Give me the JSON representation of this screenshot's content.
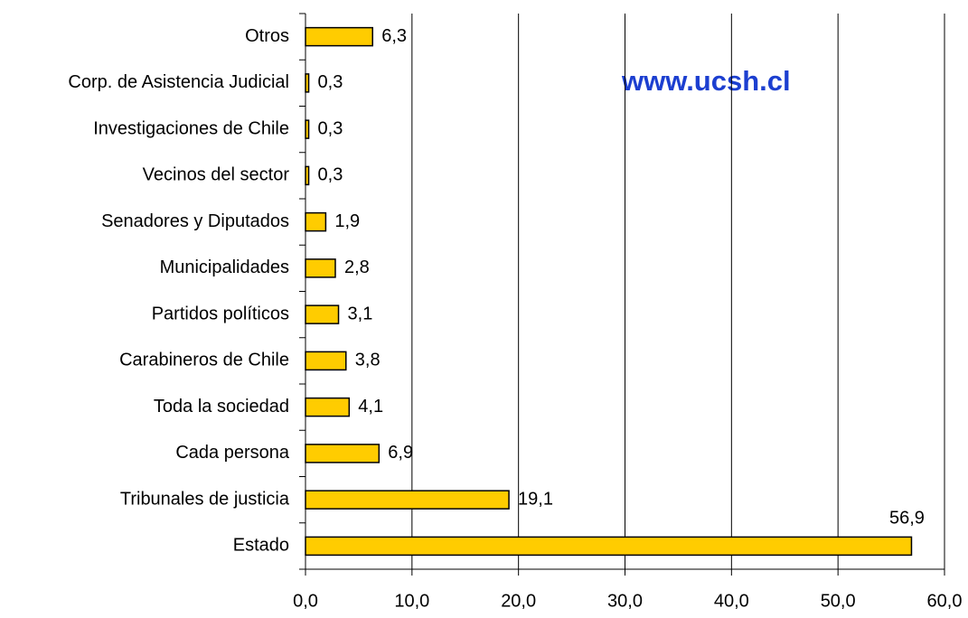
{
  "chart_data": {
    "type": "bar",
    "orientation": "horizontal",
    "annotation": "www.ucsh.cl",
    "categories": [
      "Otros",
      "Corp. de Asistencia Judicial",
      "Investigaciones de Chile",
      "Vecinos del sector",
      "Senadores y Diputados",
      "Municipalidades",
      "Partidos políticos",
      "Carabineros de Chile",
      "Toda la sociedad",
      "Cada persona",
      "Tribunales de justicia",
      "Estado"
    ],
    "values": [
      6.3,
      0.3,
      0.3,
      0.3,
      1.9,
      2.8,
      3.1,
      3.8,
      4.1,
      6.9,
      19.1,
      56.9
    ],
    "value_labels": [
      "6,3",
      "0,3",
      "0,3",
      "0,3",
      "1,9",
      "2,8",
      "3,1",
      "3,8",
      "4,1",
      "6,9",
      "19,1",
      "56,9"
    ],
    "color": "#ffcc00",
    "xlim": [
      0,
      60
    ],
    "xticks": [
      {
        "value": 0,
        "label": "0,0"
      },
      {
        "value": 10,
        "label": "10,0"
      },
      {
        "value": 20,
        "label": "20,0"
      },
      {
        "value": 30,
        "label": "30,0"
      },
      {
        "value": 40,
        "label": "40,0"
      },
      {
        "value": 50,
        "label": "50,0"
      },
      {
        "value": 60,
        "label": "60,0"
      }
    ],
    "grid": true
  }
}
